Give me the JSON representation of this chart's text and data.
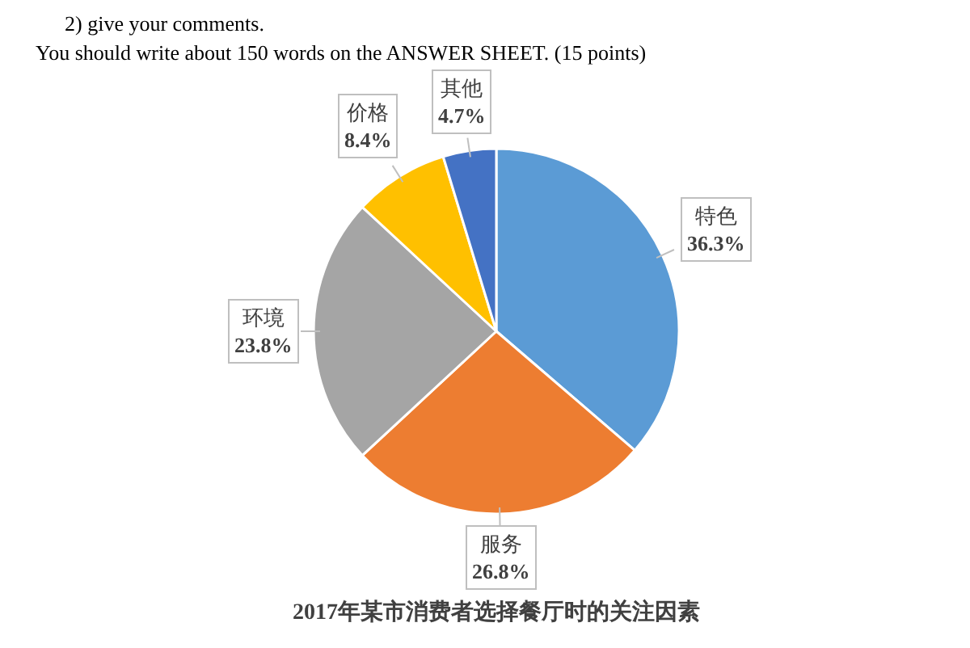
{
  "chart_data": {
    "type": "pie",
    "title": "2017年某市消费者选择餐厅时的关注因素",
    "annotations": [
      "2) give your comments.",
      "You should write about 150 words on the ANSWER SHEET. (15 points)"
    ],
    "categories": [
      "特色",
      "服务",
      "环境",
      "价格",
      "其他"
    ],
    "values": [
      36.3,
      26.8,
      23.8,
      8.4,
      4.7
    ],
    "value_labels": [
      "36.3%",
      "26.8%",
      "23.8%",
      "8.4%",
      "4.7%"
    ],
    "colors": [
      "#5b9bd5",
      "#ed7d31",
      "#a5a5a5",
      "#ffc000",
      "#4472c4"
    ],
    "legend": false
  }
}
